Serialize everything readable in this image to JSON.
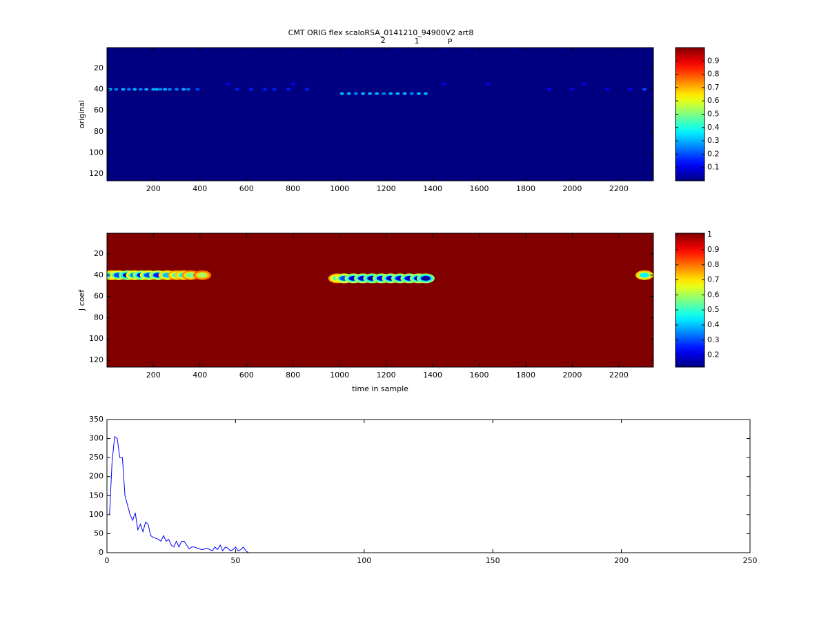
{
  "chart_data": [
    {
      "type": "heatmap",
      "title": "CMT ORIG flex scaloRSA_0141210_94900V2 art8",
      "annotations": [
        {
          "text": "2",
          "x": 1187
        },
        {
          "text": "1",
          "x": 1332
        },
        {
          "text": "P",
          "x": 1474
        }
      ],
      "ylabel": "original",
      "xlim": [
        0.5,
        2348.5
      ],
      "ylim": [
        0.5,
        126.5
      ],
      "reverse_y": true,
      "xticks": [
        200,
        400,
        600,
        800,
        1000,
        1200,
        1400,
        1600,
        1800,
        2000,
        2200
      ],
      "yticks": [
        20,
        40,
        60,
        80,
        100,
        120
      ],
      "colormap": "jet",
      "clim": [
        0,
        1
      ],
      "cticks": [
        0.1,
        0.2,
        0.3,
        0.4,
        0.5,
        0.6,
        0.7,
        0.8,
        0.9
      ],
      "background": 0,
      "spots": {
        "x": [
          15,
          40,
          70,
          95,
          120,
          145,
          170,
          200,
          215,
          230,
          250,
          270,
          300,
          330,
          350,
          390,
          560,
          620,
          680,
          720,
          780,
          860,
          1010,
          1040,
          1070,
          1100,
          1130,
          1160,
          1190,
          1220,
          1250,
          1280,
          1310,
          1340,
          1370,
          520,
          800,
          1450,
          1640,
          2050,
          1900,
          2000,
          2150,
          2250,
          2310
        ],
        "y": [
          40,
          40,
          40,
          40,
          40,
          40,
          40,
          40,
          40,
          40,
          40,
          40,
          40,
          40,
          40,
          40,
          40,
          40,
          40,
          40,
          40,
          40,
          44,
          44,
          44,
          44,
          44,
          44,
          44,
          44,
          44,
          44,
          44,
          44,
          44,
          35,
          35,
          35,
          35,
          35,
          40,
          40,
          40,
          40,
          40
        ],
        "values": [
          0.3,
          0.25,
          0.3,
          0.25,
          0.3,
          0.25,
          0.3,
          0.3,
          0.3,
          0.25,
          0.3,
          0.25,
          0.25,
          0.3,
          0.25,
          0.2,
          0.15,
          0.15,
          0.15,
          0.15,
          0.15,
          0.15,
          0.3,
          0.3,
          0.25,
          0.3,
          0.3,
          0.3,
          0.25,
          0.3,
          0.3,
          0.3,
          0.25,
          0.3,
          0.3,
          0.12,
          0.12,
          0.12,
          0.12,
          0.12,
          0.12,
          0.12,
          0.12,
          0.12,
          0.2
        ]
      }
    },
    {
      "type": "heatmap",
      "ylabel": "J coef",
      "xlabel": "time in sample",
      "xlim": [
        0.5,
        2348.5
      ],
      "ylim": [
        0.5,
        126.5
      ],
      "reverse_y": true,
      "xticks": [
        200,
        400,
        600,
        800,
        1000,
        1200,
        1400,
        1600,
        1800,
        2000,
        2200
      ],
      "yticks": [
        20,
        40,
        60,
        80,
        100,
        120
      ],
      "colormap": "jet",
      "clim": [
        0.12,
        1.01
      ],
      "cticks": [
        0.2,
        0.3,
        0.4,
        0.5,
        0.6,
        0.7,
        0.8,
        0.9,
        1
      ],
      "background": 1.01,
      "spots": {
        "x": [
          20,
          50,
          90,
          120,
          150,
          180,
          220,
          260,
          300,
          330,
          360,
          410,
          990,
          1020,
          1060,
          1100,
          1140,
          1180,
          1220,
          1260,
          1300,
          1340,
          1370,
          2310
        ],
        "y": [
          40,
          40,
          40,
          40,
          40,
          40,
          40,
          40,
          40,
          40,
          40,
          40,
          43,
          43,
          43,
          43,
          43,
          43,
          43,
          43,
          43,
          43,
          43,
          40
        ],
        "values": [
          0.4,
          0.3,
          0.15,
          0.35,
          0.2,
          0.3,
          0.25,
          0.4,
          0.5,
          0.45,
          0.55,
          0.6,
          0.5,
          0.3,
          0.2,
          0.2,
          0.15,
          0.2,
          0.2,
          0.2,
          0.2,
          0.2,
          0.15,
          0.45
        ]
      }
    },
    {
      "type": "line",
      "xlim": [
        0,
        250
      ],
      "ylim": [
        0,
        350
      ],
      "xticks": [
        0,
        50,
        100,
        150,
        200,
        250
      ],
      "yticks": [
        0,
        50,
        100,
        150,
        200,
        250,
        300,
        350
      ],
      "x": [
        1,
        2,
        3,
        4,
        5,
        6,
        7,
        8,
        9,
        10,
        11,
        12,
        13,
        14,
        15,
        16,
        17,
        18,
        19,
        20,
        21,
        22,
        23,
        24,
        25,
        26,
        27,
        28,
        29,
        30,
        31,
        32,
        33,
        34,
        35,
        36,
        37,
        38,
        39,
        40,
        41,
        42,
        43,
        44,
        45,
        46,
        47,
        48,
        49,
        50,
        51,
        52,
        53,
        54,
        55
      ],
      "series": [
        {
          "color": "#0000ff",
          "values": [
            100,
            240,
            305,
            300,
            250,
            250,
            150,
            125,
            100,
            85,
            105,
            60,
            75,
            55,
            80,
            75,
            45,
            40,
            38,
            35,
            30,
            45,
            30,
            35,
            20,
            15,
            30,
            15,
            30,
            30,
            20,
            10,
            15,
            15,
            12,
            10,
            8,
            10,
            12,
            8,
            5,
            15,
            8,
            20,
            5,
            15,
            12,
            5,
            8,
            15,
            5,
            8,
            15,
            5,
            0
          ]
        }
      ]
    }
  ]
}
